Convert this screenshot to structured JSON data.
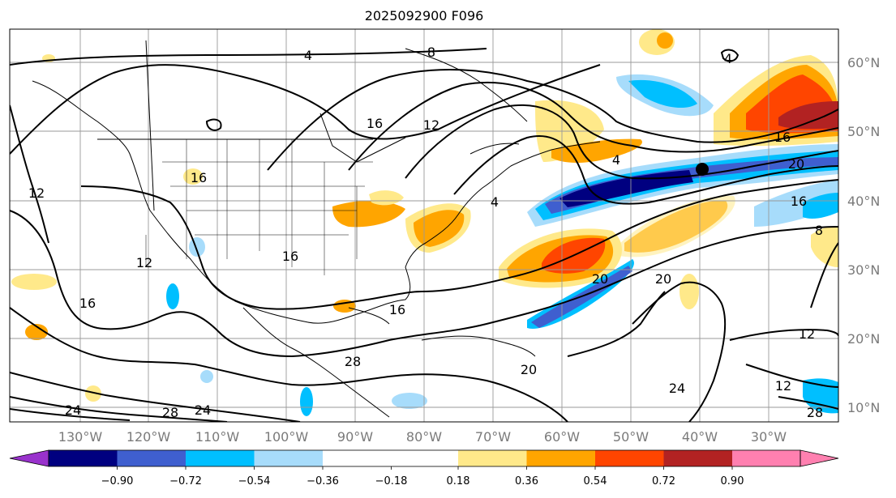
{
  "title": "2025092900 F096",
  "lat_labels": [
    "60°N",
    "50°N",
    "40°N",
    "30°N",
    "20°N",
    "10°N"
  ],
  "lon_labels": [
    "130°W",
    "120°W",
    "110°W",
    "100°W",
    "90°W",
    "80°W",
    "70°W",
    "60°W",
    "50°W",
    "40°W",
    "30°W"
  ],
  "contour_labels": [
    "4",
    "8",
    "12",
    "16",
    "20",
    "24",
    "28"
  ],
  "colorbar": {
    "ticks": [
      "−0.90",
      "−0.72",
      "−0.54",
      "−0.36",
      "−0.18",
      "0.18",
      "0.36",
      "0.54",
      "0.72",
      "0.90"
    ],
    "colors": [
      "#9932cc",
      "#000080",
      "#3f5fcf",
      "#00bfff",
      "#a7dcfb",
      "#ffffff",
      "#ffe98a",
      "#ffa500",
      "#ff4500",
      "#b22222",
      "#ff80b0"
    ]
  },
  "marker": {
    "label": "storm-center"
  }
}
